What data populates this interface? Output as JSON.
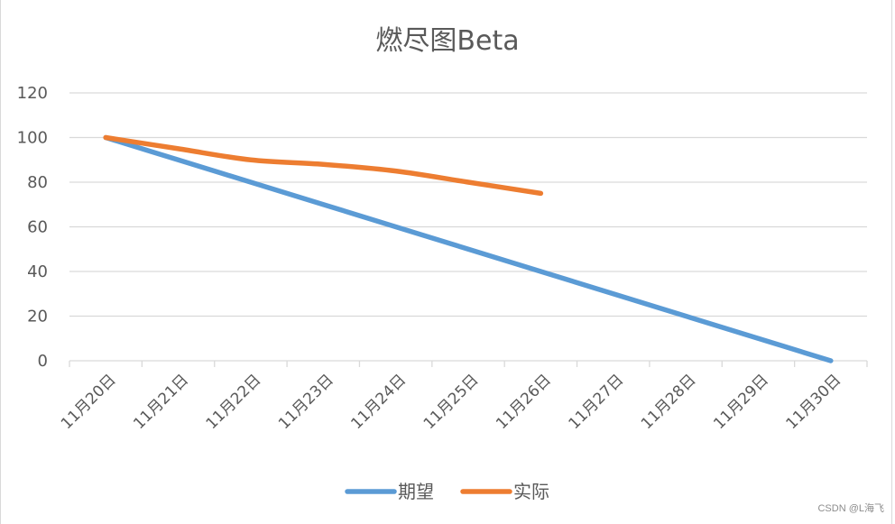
{
  "chart_data": {
    "type": "line",
    "title": "燃尽图Beta",
    "xlabel": "",
    "ylabel": "",
    "categories": [
      "11月20日",
      "11月21日",
      "11月22日",
      "11月23日",
      "11月24日",
      "11月25日",
      "11月26日",
      "11月27日",
      "11月28日",
      "11月29日",
      "11月30日"
    ],
    "series": [
      {
        "name": "期望",
        "color": "#5B9BD5",
        "values": [
          100,
          90,
          80,
          70,
          60,
          50,
          40,
          30,
          20,
          10,
          0
        ]
      },
      {
        "name": "实际",
        "color": "#ED7D31",
        "values": [
          100,
          95,
          90,
          88,
          85,
          80,
          75,
          null,
          null,
          null,
          null
        ]
      }
    ],
    "ylim": [
      0,
      120
    ],
    "yticks": [
      0,
      20,
      40,
      60,
      80,
      100,
      120
    ],
    "grid": true,
    "legend_position": "bottom",
    "smooth": true
  },
  "watermark": "CSDN @L海飞"
}
